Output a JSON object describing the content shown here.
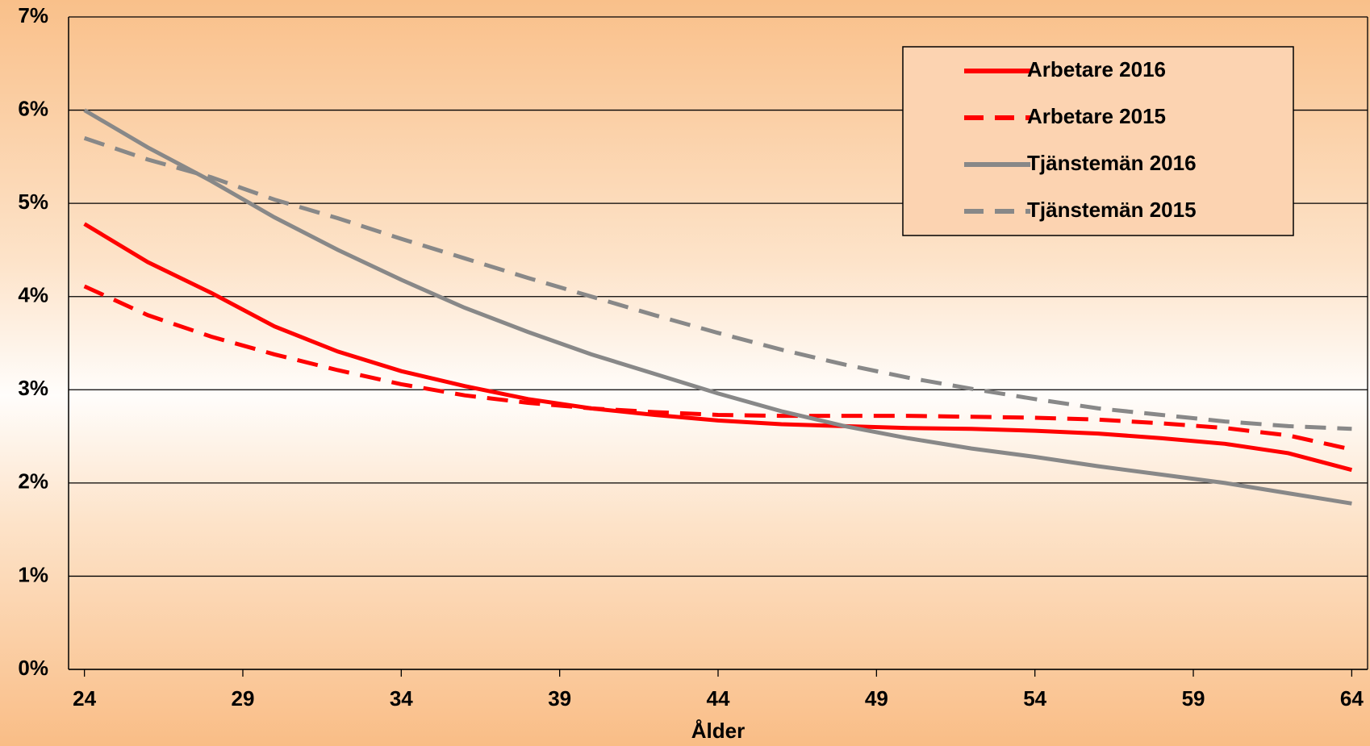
{
  "chart_data": {
    "type": "line",
    "x_label": "Ålder",
    "x": [
      24,
      26,
      28,
      30,
      32,
      34,
      36,
      38,
      40,
      42,
      44,
      46,
      48,
      50,
      52,
      54,
      56,
      58,
      60,
      62,
      64
    ],
    "xlim": [
      23.5,
      64.5
    ],
    "xticks": [
      24,
      29,
      34,
      39,
      44,
      49,
      54,
      59,
      64
    ],
    "ylim": [
      0,
      7
    ],
    "yticks": [
      {
        "value": 0,
        "label": "0%"
      },
      {
        "value": 1,
        "label": "1%"
      },
      {
        "value": 2,
        "label": "2%"
      },
      {
        "value": 3,
        "label": "3%"
      },
      {
        "value": 4,
        "label": "4%"
      },
      {
        "value": 5,
        "label": "5%"
      },
      {
        "value": 6,
        "label": "6%"
      },
      {
        "value": 7,
        "label": "7%"
      }
    ],
    "grid": true,
    "legend": "upper right",
    "series": [
      {
        "name": "Arbetare 2016",
        "color": "#ff0000",
        "linestyle": "solid",
        "values": [
          4.78,
          4.37,
          4.04,
          3.68,
          3.41,
          3.2,
          3.04,
          2.9,
          2.8,
          2.73,
          2.67,
          2.63,
          2.61,
          2.59,
          2.58,
          2.56,
          2.53,
          2.48,
          2.42,
          2.32,
          2.14
        ]
      },
      {
        "name": "Arbetare 2015",
        "color": "#ff0000",
        "linestyle": "dashed",
        "values": [
          4.11,
          3.8,
          3.57,
          3.38,
          3.21,
          3.06,
          2.94,
          2.86,
          2.8,
          2.76,
          2.73,
          2.72,
          2.72,
          2.72,
          2.71,
          2.7,
          2.68,
          2.64,
          2.59,
          2.51,
          2.36
        ]
      },
      {
        "name": "Tjänstemän 2016",
        "color": "#888888",
        "linestyle": "solid",
        "values": [
          6.0,
          5.6,
          5.24,
          4.85,
          4.5,
          4.18,
          3.88,
          3.62,
          3.38,
          3.17,
          2.96,
          2.77,
          2.61,
          2.48,
          2.37,
          2.28,
          2.18,
          2.09,
          2.0,
          1.89,
          1.78
        ]
      },
      {
        "name": "Tjänstemän 2015",
        "color": "#888888",
        "linestyle": "dashed",
        "values": [
          5.7,
          5.47,
          5.28,
          5.04,
          4.84,
          4.62,
          4.41,
          4.2,
          4.0,
          3.8,
          3.61,
          3.43,
          3.27,
          3.13,
          3.01,
          2.9,
          2.8,
          2.73,
          2.66,
          2.61,
          2.58
        ]
      }
    ]
  }
}
